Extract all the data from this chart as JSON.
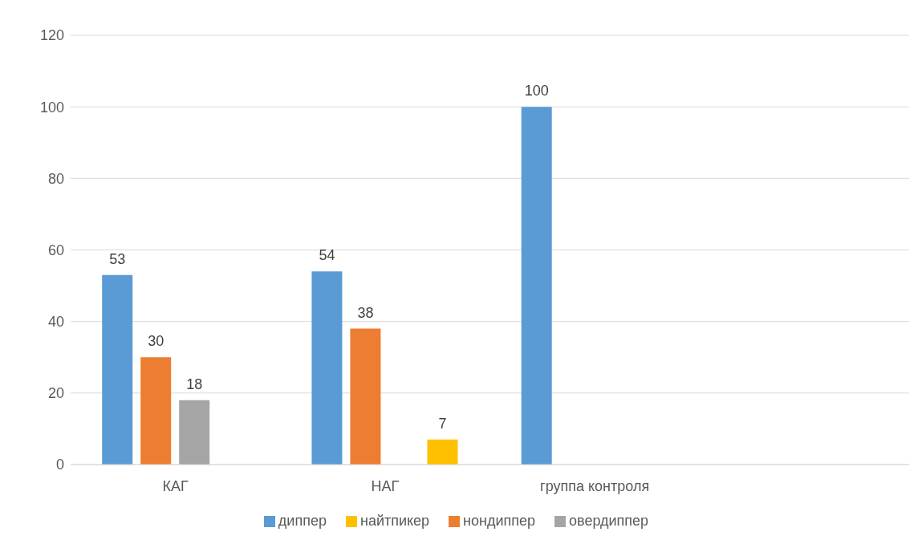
{
  "chart_data": {
    "type": "bar",
    "categories": [
      "КАГ",
      "НАГ",
      "группа контроля",
      null
    ],
    "series": [
      {
        "name": "диппер",
        "color": "#5b9bd5",
        "values": [
          53,
          54,
          100,
          null
        ]
      },
      {
        "name": "нондиппер",
        "color": "#ed7d31",
        "values": [
          30,
          38,
          null,
          null
        ]
      },
      {
        "name": "овердиппер",
        "color": "#a5a5a5",
        "values": [
          18,
          null,
          null,
          null
        ]
      },
      {
        "name": "найтпикер",
        "color": "#ffc000",
        "values": [
          null,
          7,
          null,
          null
        ]
      }
    ],
    "ylim": [
      0,
      120
    ],
    "yticks": [
      0,
      20,
      40,
      60,
      80,
      100,
      120
    ],
    "grid": "y",
    "legend": "bottom",
    "data_labels": true
  }
}
